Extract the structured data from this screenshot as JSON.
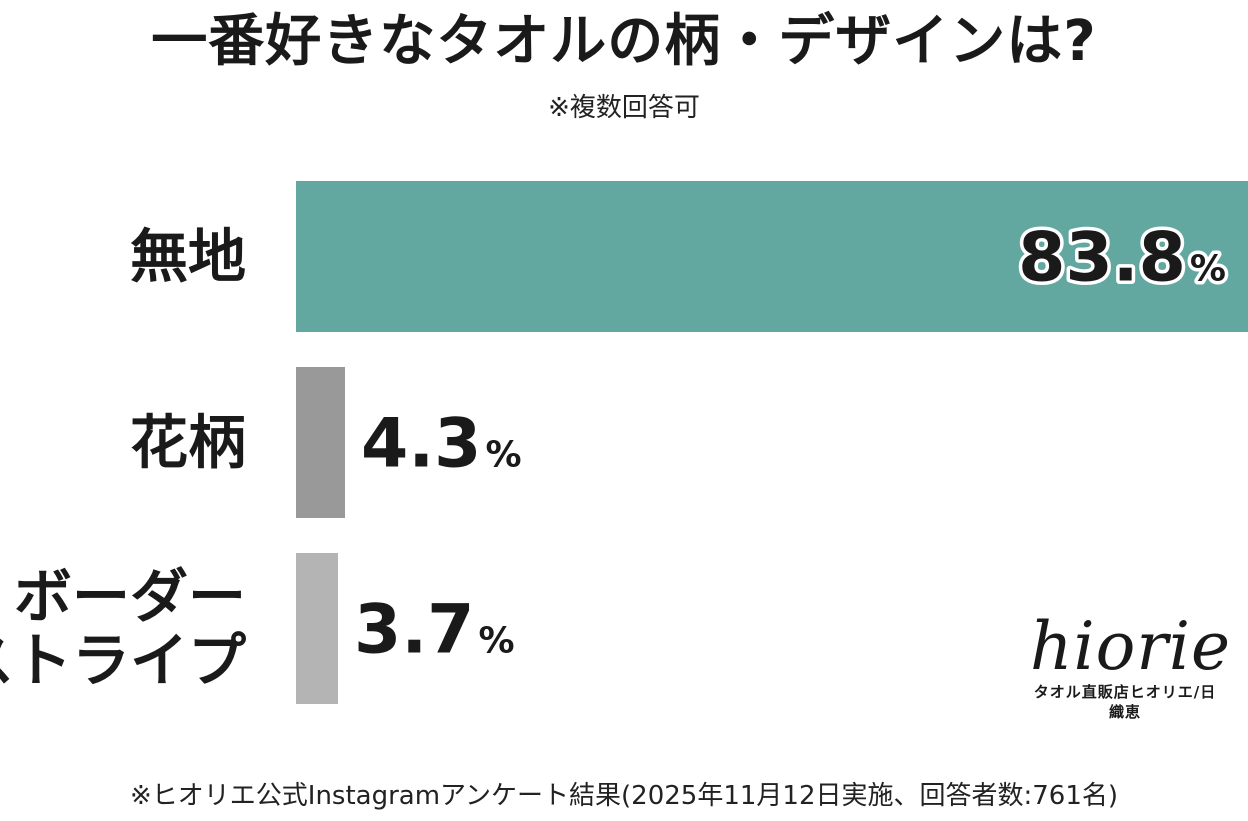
{
  "title": "一番好きなタオルの柄・デザインは?",
  "subtitle": "※複数回答可",
  "chart_data": {
    "type": "bar",
    "orientation": "horizontal",
    "title": "一番好きなタオルの柄・デザインは?",
    "categories": [
      "無地",
      "花柄",
      "ボーダーストライプ"
    ],
    "category_label_lines": [
      [
        "無地"
      ],
      [
        "花柄"
      ],
      [
        "ボーダー",
        "ストライプ"
      ]
    ],
    "values": [
      83.8,
      4.3,
      3.7
    ],
    "value_labels": [
      "83.8",
      "4.3",
      "3.7"
    ],
    "unit": "%",
    "xlim": [
      0,
      83.8
    ],
    "grid": false,
    "colors": [
      "#62a8a0",
      "#999999",
      "#b4b4b4"
    ]
  },
  "logo": {
    "word": "hiorie",
    "tagline": "タオル直販店ヒオリエ/日織恵"
  },
  "footnote": "※ヒオリエ公式Instagramアンケート結果(2025年11月12日実施、回答者数:761名)"
}
